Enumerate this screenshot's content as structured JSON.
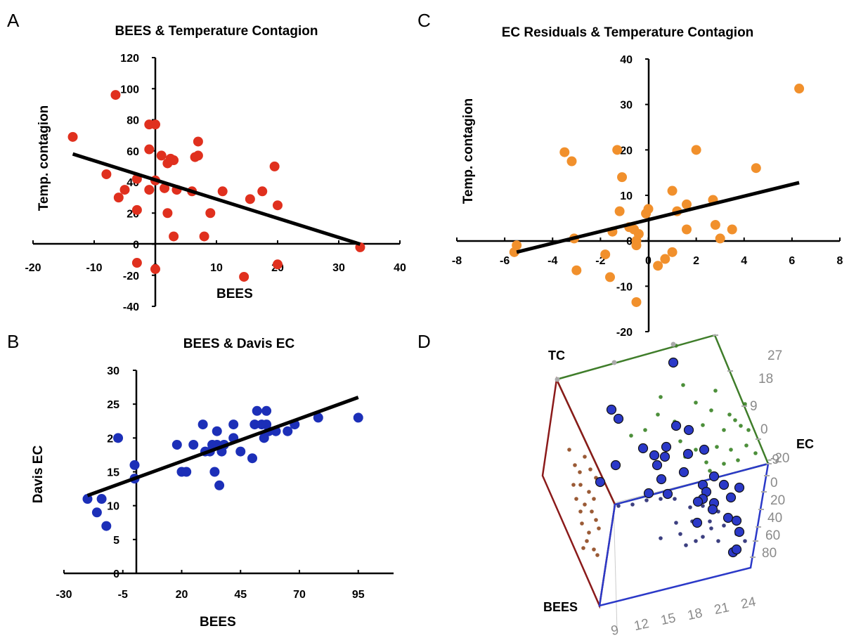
{
  "panels": {
    "a": "A",
    "b": "B",
    "c": "C",
    "d": "D"
  },
  "chart_data": [
    {
      "id": "A",
      "type": "scatter",
      "title": "BEES & Temperature  Contagion",
      "xlabel": "BEES",
      "ylabel": "Temp. contagion",
      "xlim": [
        -20,
        40
      ],
      "ylim": [
        -40,
        120
      ],
      "xticks": [
        "-20",
        "-10",
        "0",
        "10",
        "20",
        "30",
        "40"
      ],
      "yticks": [
        "-40",
        "-20",
        "0",
        "20",
        "40",
        "60",
        "80",
        "100",
        "120"
      ],
      "color": "#e0301e",
      "points": [
        [
          -13.5,
          69
        ],
        [
          -6.5,
          96
        ],
        [
          -8,
          45
        ],
        [
          -6,
          30
        ],
        [
          -5,
          35
        ],
        [
          -3,
          42
        ],
        [
          -3,
          22
        ],
        [
          -3,
          -12
        ],
        [
          -1,
          35
        ],
        [
          -1,
          61
        ],
        [
          -1,
          77
        ],
        [
          0,
          77
        ],
        [
          0,
          41
        ],
        [
          0,
          -16
        ],
        [
          1,
          57
        ],
        [
          1.5,
          36
        ],
        [
          2,
          20
        ],
        [
          2,
          52
        ],
        [
          2.5,
          55
        ],
        [
          3,
          54
        ],
        [
          3,
          5
        ],
        [
          3.5,
          35
        ],
        [
          6,
          34
        ],
        [
          6.5,
          56
        ],
        [
          7,
          66
        ],
        [
          7,
          57
        ],
        [
          8,
          5
        ],
        [
          9,
          20
        ],
        [
          11,
          34
        ],
        [
          14.5,
          -21
        ],
        [
          15.5,
          29
        ],
        [
          17.5,
          34
        ],
        [
          19.5,
          50
        ],
        [
          20,
          25
        ],
        [
          20,
          -13
        ],
        [
          33.5,
          -2
        ]
      ],
      "fit": {
        "x": [
          -13.5,
          33.5
        ],
        "y": [
          58,
          0
        ]
      }
    },
    {
      "id": "B",
      "type": "scatter",
      "title": "BEES & Davis EC",
      "xlabel": "BEES",
      "ylabel": "Davis EC",
      "xlim": [
        -30,
        110
      ],
      "ylim": [
        0,
        30
      ],
      "xticks": [
        "-30",
        "-5",
        "20",
        "45",
        "70",
        "95"
      ],
      "yticks": [
        "0",
        "5",
        "10",
        "15",
        "20",
        "25",
        "30"
      ],
      "color": "#1c2fb8",
      "points": [
        [
          -20,
          11
        ],
        [
          -16,
          9
        ],
        [
          -14,
          11
        ],
        [
          -12,
          7
        ],
        [
          -7,
          20
        ],
        [
          0,
          16
        ],
        [
          0,
          14
        ],
        [
          18,
          19
        ],
        [
          20,
          15
        ],
        [
          22,
          15
        ],
        [
          25,
          19
        ],
        [
          29,
          22
        ],
        [
          30,
          18
        ],
        [
          32,
          18
        ],
        [
          33,
          19
        ],
        [
          34,
          15
        ],
        [
          35,
          21
        ],
        [
          35,
          19
        ],
        [
          36,
          13
        ],
        [
          37,
          18
        ],
        [
          38,
          19
        ],
        [
          42,
          20
        ],
        [
          42,
          22
        ],
        [
          45,
          18
        ],
        [
          50,
          17
        ],
        [
          51,
          22
        ],
        [
          52,
          24
        ],
        [
          54,
          22
        ],
        [
          55,
          20
        ],
        [
          56,
          24
        ],
        [
          56,
          22
        ],
        [
          57,
          21
        ],
        [
          60,
          21
        ],
        [
          65,
          21
        ],
        [
          68,
          22
        ],
        [
          78,
          23
        ],
        [
          95,
          23
        ]
      ],
      "fit": {
        "x": [
          -20,
          95
        ],
        "y": [
          11.5,
          26
        ]
      }
    },
    {
      "id": "C",
      "type": "scatter",
      "title": "EC Residuals & Temperature  Contagion",
      "xlabel": "",
      "ylabel": "Temp. contagion",
      "xlim": [
        -8,
        8
      ],
      "ylim": [
        -20,
        40
      ],
      "xticks": [
        "-8",
        "-6",
        "-4",
        "-2",
        "0",
        "2",
        "4",
        "6",
        "8"
      ],
      "yticks": [
        "-20",
        "-10",
        "0",
        "10",
        "20",
        "30",
        "40"
      ],
      "color": "#f1902c",
      "points": [
        [
          -5.6,
          -2.5
        ],
        [
          -5.5,
          -1
        ],
        [
          -3.5,
          19.5
        ],
        [
          -3.2,
          17.5
        ],
        [
          -3.1,
          0.5
        ],
        [
          -3,
          -6.5
        ],
        [
          -1.8,
          -3
        ],
        [
          -1.6,
          -8
        ],
        [
          -1.5,
          2
        ],
        [
          -1.3,
          20
        ],
        [
          -1.2,
          6.5
        ],
        [
          -1.1,
          14
        ],
        [
          -0.8,
          3
        ],
        [
          -0.6,
          2.5
        ],
        [
          -0.5,
          -1
        ],
        [
          -0.5,
          0
        ],
        [
          -0.5,
          -13.5
        ],
        [
          -0.4,
          1.5
        ],
        [
          -0.1,
          6
        ],
        [
          0,
          7
        ],
        [
          0.4,
          -5.5
        ],
        [
          0.7,
          -4
        ],
        [
          1,
          -2.5
        ],
        [
          1,
          11
        ],
        [
          1.2,
          6.5
        ],
        [
          1.6,
          8
        ],
        [
          1.6,
          2.5
        ],
        [
          2,
          20
        ],
        [
          2.7,
          9
        ],
        [
          2.8,
          3.5
        ],
        [
          3,
          0.5
        ],
        [
          3.5,
          2.5
        ],
        [
          4.5,
          16
        ],
        [
          6.3,
          33.5
        ]
      ],
      "fit": {
        "x": [
          -5.5,
          6.3
        ],
        "y": [
          -2.5,
          12.8
        ]
      }
    },
    {
      "id": "D",
      "type": "scatter",
      "title": "",
      "labels": {
        "tc": "TC",
        "ec": "EC",
        "bees": "BEES"
      },
      "tc_ticks": [
        "27",
        "18",
        "9",
        "0",
        "-9"
      ],
      "ec_ticks": [
        "-20",
        "0",
        "20",
        "40",
        "60",
        "80"
      ],
      "bees_ticks": [
        "9",
        "12",
        "15",
        "18",
        "21",
        "24"
      ],
      "colors": {
        "point": "#2b39c8",
        "tc_face": "#3f7d2a",
        "bees_face": "#8b1a1a",
        "ec_face": "#2b39c8",
        "green_dot": "#4c8f3a",
        "brown_dot": "#9a5a35",
        "navy_dot": "#3c3f80"
      }
    }
  ]
}
